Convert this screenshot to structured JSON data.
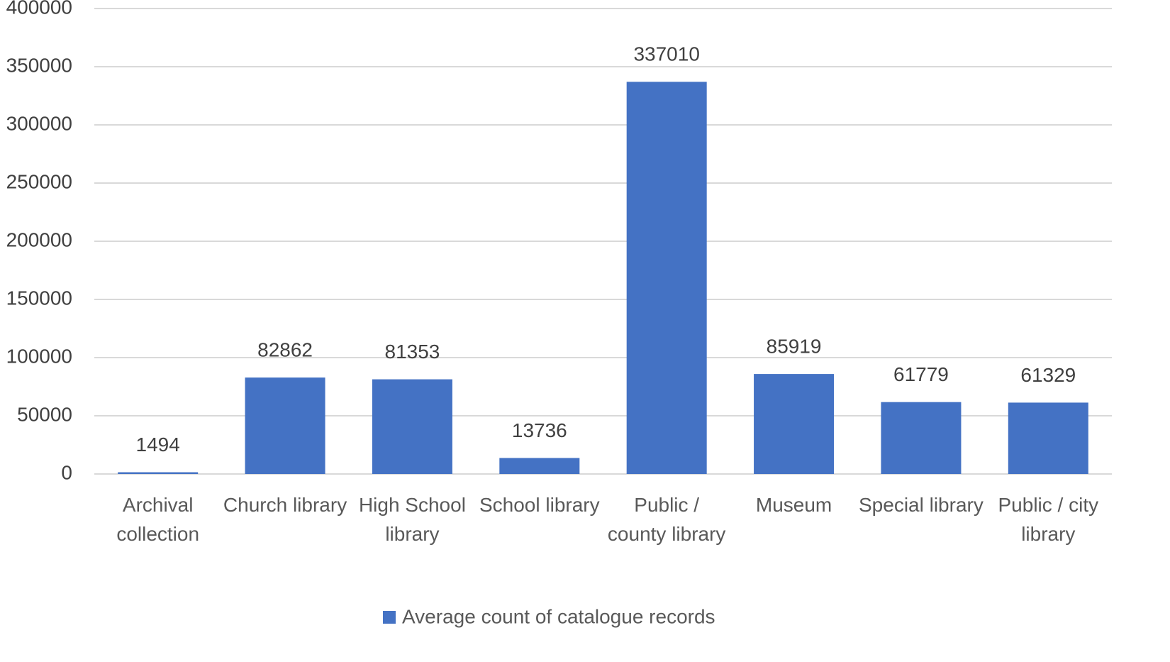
{
  "chart_data": {
    "type": "bar",
    "categories": [
      "Archival collection",
      "Church library",
      "High School library",
      "School library",
      "Public / county library",
      "Museum",
      "Special library",
      "Public / city library"
    ],
    "series": [
      {
        "name": "Average count of catalogue records",
        "color": "#4472c4",
        "values": [
          1494,
          82862,
          81353,
          13736,
          337010,
          85919,
          61779,
          61329
        ]
      }
    ],
    "ylim": [
      0,
      400000
    ],
    "yticks": [
      0,
      50000,
      100000,
      150000,
      200000,
      250000,
      300000,
      350000,
      400000
    ],
    "grid": true,
    "legend": "bottom"
  }
}
